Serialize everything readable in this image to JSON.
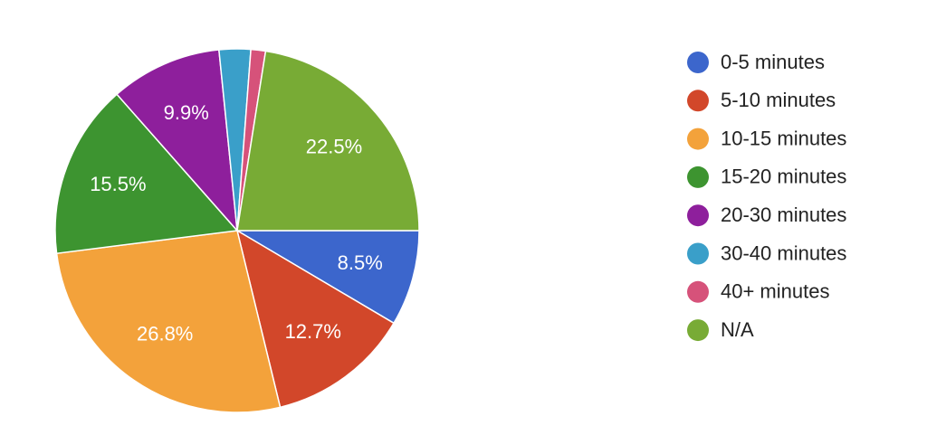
{
  "chart_data": {
    "type": "pie",
    "categories": [
      "0-5 minutes",
      "5-10 minutes",
      "10-15 minutes",
      "15-20 minutes",
      "20-30 minutes",
      "30-40 minutes",
      "40+ minutes",
      "N/A"
    ],
    "values": [
      8.5,
      12.7,
      26.8,
      15.5,
      9.9,
      2.8,
      1.3,
      22.5
    ],
    "value_labels": [
      "8.5%",
      "12.7%",
      "26.8%",
      "15.5%",
      "9.9%",
      null,
      null,
      "22.5%"
    ],
    "colors": [
      "#3c66cc",
      "#d2472a",
      "#f3a23b",
      "#3d9430",
      "#8e1f9c",
      "#3a9fc9",
      "#d6527a",
      "#78ab35"
    ]
  }
}
